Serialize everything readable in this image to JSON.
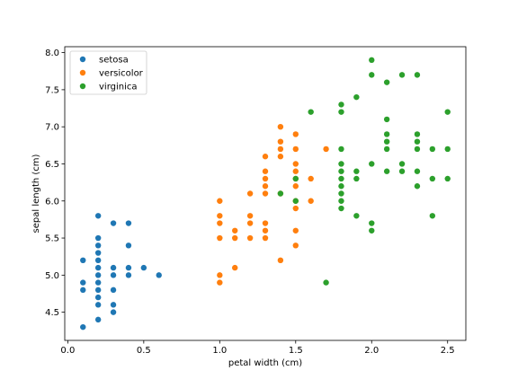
{
  "chart_data": {
    "type": "scatter",
    "title": "",
    "xlabel": "petal width (cm)",
    "ylabel": "sepal length (cm)",
    "xlim": [
      -0.02,
      2.62
    ],
    "ylim": [
      4.12,
      8.08
    ],
    "grid": false,
    "legend_position": "top-left",
    "xticks": [
      "0.0",
      "0.5",
      "1.0",
      "1.5",
      "2.0",
      "2.5"
    ],
    "yticks": [
      "4.5",
      "5.0",
      "5.5",
      "6.0",
      "6.5",
      "7.0",
      "7.5",
      "8.0"
    ],
    "series": [
      {
        "name": "setosa",
        "color": "#1f77b4",
        "points": [
          [
            0.1,
            4.3
          ],
          [
            0.1,
            4.8
          ],
          [
            0.1,
            4.9
          ],
          [
            0.1,
            5.2
          ],
          [
            0.2,
            4.4
          ],
          [
            0.2,
            4.6
          ],
          [
            0.2,
            4.7
          ],
          [
            0.2,
            4.8
          ],
          [
            0.2,
            4.9
          ],
          [
            0.2,
            5.0
          ],
          [
            0.2,
            5.1
          ],
          [
            0.2,
            5.2
          ],
          [
            0.2,
            5.3
          ],
          [
            0.2,
            5.4
          ],
          [
            0.2,
            5.5
          ],
          [
            0.2,
            5.8
          ],
          [
            0.3,
            4.5
          ],
          [
            0.3,
            4.6
          ],
          [
            0.3,
            4.8
          ],
          [
            0.3,
            5.0
          ],
          [
            0.3,
            5.1
          ],
          [
            0.3,
            5.7
          ],
          [
            0.4,
            5.0
          ],
          [
            0.4,
            5.1
          ],
          [
            0.4,
            5.4
          ],
          [
            0.4,
            5.7
          ],
          [
            0.5,
            5.1
          ],
          [
            0.6,
            5.0
          ]
        ]
      },
      {
        "name": "versicolor",
        "color": "#ff7f0e",
        "points": [
          [
            1.0,
            4.9
          ],
          [
            1.0,
            5.0
          ],
          [
            1.0,
            5.5
          ],
          [
            1.0,
            5.7
          ],
          [
            1.0,
            5.8
          ],
          [
            1.0,
            6.0
          ],
          [
            1.1,
            5.1
          ],
          [
            1.1,
            5.5
          ],
          [
            1.1,
            5.6
          ],
          [
            1.2,
            5.5
          ],
          [
            1.2,
            5.7
          ],
          [
            1.2,
            5.8
          ],
          [
            1.2,
            6.1
          ],
          [
            1.3,
            5.5
          ],
          [
            1.3,
            5.6
          ],
          [
            1.3,
            5.7
          ],
          [
            1.3,
            6.1
          ],
          [
            1.3,
            6.2
          ],
          [
            1.3,
            6.3
          ],
          [
            1.3,
            6.4
          ],
          [
            1.3,
            6.6
          ],
          [
            1.4,
            5.2
          ],
          [
            1.4,
            6.1
          ],
          [
            1.4,
            6.6
          ],
          [
            1.4,
            6.7
          ],
          [
            1.4,
            6.8
          ],
          [
            1.4,
            7.0
          ],
          [
            1.5,
            5.4
          ],
          [
            1.5,
            5.6
          ],
          [
            1.5,
            5.9
          ],
          [
            1.5,
            6.0
          ],
          [
            1.5,
            6.2
          ],
          [
            1.5,
            6.3
          ],
          [
            1.5,
            6.4
          ],
          [
            1.5,
            6.5
          ],
          [
            1.5,
            6.7
          ],
          [
            1.5,
            6.9
          ],
          [
            1.6,
            6.0
          ],
          [
            1.6,
            6.3
          ],
          [
            1.7,
            6.7
          ]
        ]
      },
      {
        "name": "virginica",
        "color": "#2ca02c",
        "points": [
          [
            1.4,
            6.1
          ],
          [
            1.5,
            6.0
          ],
          [
            1.5,
            6.3
          ],
          [
            1.6,
            7.2
          ],
          [
            1.7,
            4.9
          ],
          [
            1.8,
            5.9
          ],
          [
            1.8,
            6.0
          ],
          [
            1.8,
            6.1
          ],
          [
            1.8,
            6.2
          ],
          [
            1.8,
            6.3
          ],
          [
            1.8,
            6.4
          ],
          [
            1.8,
            6.5
          ],
          [
            1.8,
            6.7
          ],
          [
            1.8,
            7.2
          ],
          [
            1.8,
            7.3
          ],
          [
            1.9,
            5.8
          ],
          [
            1.9,
            6.3
          ],
          [
            1.9,
            6.4
          ],
          [
            1.9,
            7.4
          ],
          [
            2.0,
            5.6
          ],
          [
            2.0,
            5.7
          ],
          [
            2.0,
            6.5
          ],
          [
            2.0,
            7.7
          ],
          [
            2.0,
            7.9
          ],
          [
            2.1,
            6.4
          ],
          [
            2.1,
            6.7
          ],
          [
            2.1,
            6.8
          ],
          [
            2.1,
            6.9
          ],
          [
            2.1,
            7.1
          ],
          [
            2.1,
            7.6
          ],
          [
            2.2,
            6.4
          ],
          [
            2.2,
            6.5
          ],
          [
            2.2,
            7.7
          ],
          [
            2.3,
            6.2
          ],
          [
            2.3,
            6.4
          ],
          [
            2.3,
            6.7
          ],
          [
            2.3,
            6.8
          ],
          [
            2.3,
            6.9
          ],
          [
            2.3,
            7.7
          ],
          [
            2.4,
            5.8
          ],
          [
            2.4,
            6.3
          ],
          [
            2.4,
            6.7
          ],
          [
            2.5,
            6.3
          ],
          [
            2.5,
            6.7
          ],
          [
            2.5,
            7.2
          ]
        ]
      }
    ]
  }
}
